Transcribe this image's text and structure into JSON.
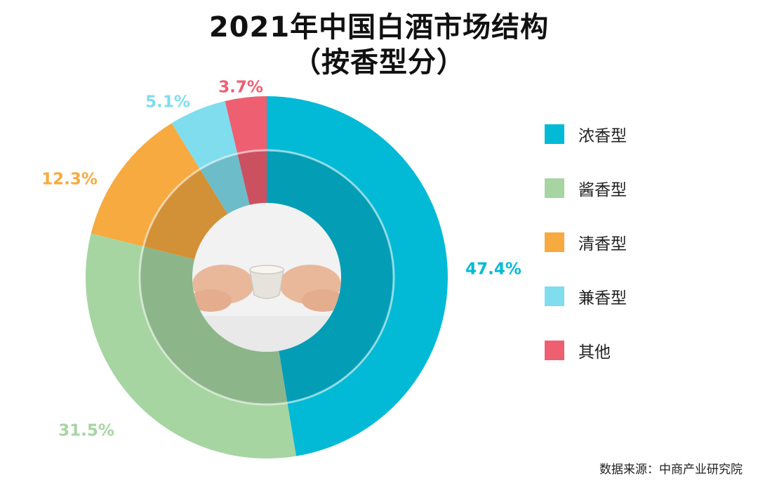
{
  "title_line1": "2021年中国白酒市场结构",
  "title_line2": "（按香型分）",
  "source": "数据来源：中商产业研究院",
  "chart_data": {
    "type": "pie",
    "style": "donut",
    "title": "2021年中国白酒市场结构（按香型分）",
    "unit": "%",
    "legend_position": "right",
    "categories": [
      "浓香型",
      "酱香型",
      "清香型",
      "兼香型",
      "其他"
    ],
    "values": [
      47.4,
      31.5,
      12.3,
      5.1,
      3.7
    ],
    "labels": [
      "47.4%",
      "31.5%",
      "12.3%",
      "5.1%",
      "3.7%"
    ],
    "colors": [
      "#03BAD6",
      "#A6D5A2",
      "#F7AA3F",
      "#7FDDEE",
      "#EF5F72"
    ]
  }
}
